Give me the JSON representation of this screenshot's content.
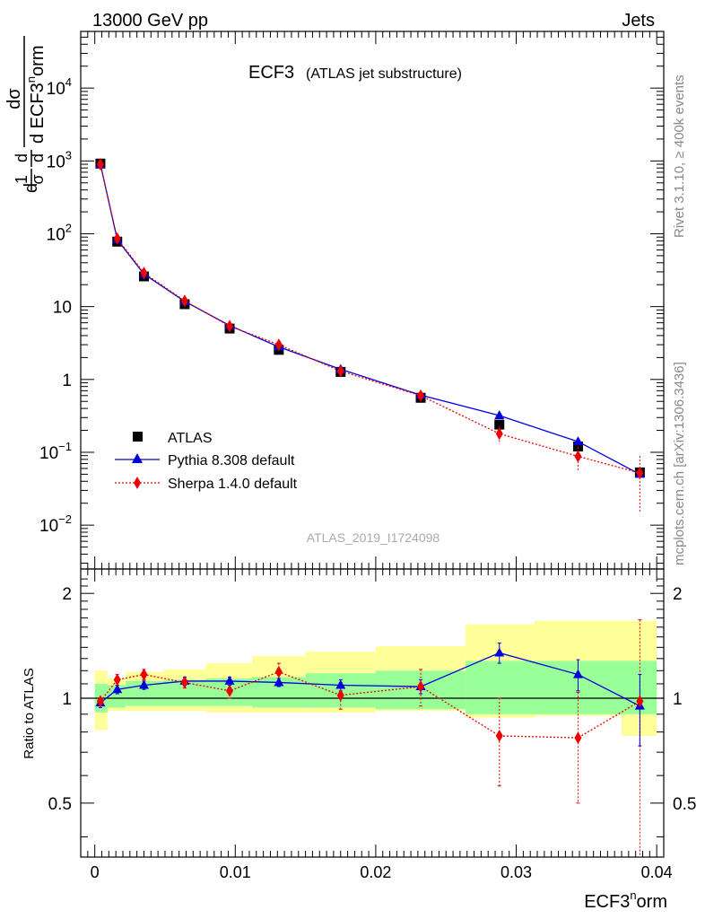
{
  "header": {
    "energy": "13000 GeV pp",
    "category": "Jets"
  },
  "side_labels": {
    "rivet": "Rivet 3.1.10, ≥ 400k events",
    "mcplots": "mcplots.cern.ch [arXiv:1306.3436]"
  },
  "chart_data": {
    "type": "line",
    "title_main": "ECF3",
    "title_sub": "(ATLAS jet substructure)",
    "watermark": "ATLAS_2019_I1724098",
    "xlabel_base": "ECF3",
    "xlabel_sup": "n",
    "xlabel_tail": "orm",
    "ylabel_top": {
      "prefix": "d",
      "frac1_num": "1",
      "frac1_den": "σ",
      "frac2_num": "d",
      "frac2_den": "d",
      "dsig_num": "dσ",
      "dsig_den_base": "d ECF3",
      "dsig_den_sup": "n",
      "dsig_den_tail": "orm"
    },
    "ylabel_ratio": "Ratio to ATLAS",
    "xlim": [
      -0.001,
      0.0405
    ],
    "ylim_top": [
      0.0025,
      60000
    ],
    "ylim_ratio": [
      0.35,
      2.35
    ],
    "x_ticks": [
      "0",
      "0.01",
      "0.02",
      "0.03",
      "0.04"
    ],
    "y_ticks_top": [
      {
        "base": "10",
        "exp": "4"
      },
      {
        "base": "10",
        "exp": "3"
      },
      {
        "base": "10",
        "exp": "2"
      },
      {
        "base": "10",
        "exp": ""
      },
      {
        "base": "1",
        "exp": ""
      },
      {
        "base": "10",
        "exp": "−1"
      },
      {
        "base": "10",
        "exp": "−2"
      }
    ],
    "y_ticks_ratio": [
      "2",
      "1",
      "0.5"
    ],
    "legend": [
      "ATLAS",
      "Pythia 8.308 default",
      "Sherpa 1.4.0 default"
    ],
    "bin_edges": [
      0.0,
      0.0009,
      0.0022,
      0.0049,
      0.0079,
      0.0112,
      0.015,
      0.02,
      0.0264,
      0.0313,
      0.0375,
      0.04
    ],
    "x": [
      0.0004,
      0.0016,
      0.0035,
      0.0064,
      0.0096,
      0.0131,
      0.0175,
      0.0232,
      0.0288,
      0.0344,
      0.0388
    ],
    "series": [
      {
        "name": "ATLAS",
        "values": [
          920,
          78,
          26,
          10.8,
          5.0,
          2.55,
          1.27,
          0.56,
          0.24,
          0.12,
          0.053
        ]
      },
      {
        "name": "Pythia 8.308 default",
        "values": [
          900,
          83,
          28,
          11.8,
          5.5,
          2.8,
          1.38,
          0.61,
          0.32,
          0.14,
          0.05
        ],
        "ratio": [
          0.97,
          1.06,
          1.09,
          1.12,
          1.12,
          1.11,
          1.09,
          1.08,
          1.35,
          1.17,
          0.95
        ],
        "ratio_err": [
          0.03,
          0.03,
          0.03,
          0.03,
          0.03,
          0.03,
          0.04,
          0.05,
          0.09,
          0.12,
          0.22
        ]
      },
      {
        "name": "Sherpa 1.4.0 default",
        "values": [
          900,
          86,
          29,
          12.0,
          5.4,
          3.0,
          1.3,
          0.6,
          0.18,
          0.088,
          0.052
        ],
        "ratio": [
          0.98,
          1.13,
          1.17,
          1.11,
          1.05,
          1.19,
          1.02,
          1.08,
          0.78,
          0.77,
          0.98
        ],
        "ratio_err": [
          0.02,
          0.04,
          0.04,
          0.04,
          0.05,
          0.07,
          0.09,
          0.13,
          0.22,
          0.27,
          0.7
        ]
      }
    ],
    "band_inner": [
      [
        0.91,
        1.1
      ],
      [
        0.94,
        1.09
      ],
      [
        0.95,
        1.12
      ],
      [
        0.95,
        1.13
      ],
      [
        0.95,
        1.14
      ],
      [
        0.94,
        1.15
      ],
      [
        0.94,
        1.18
      ],
      [
        0.93,
        1.2
      ],
      [
        0.9,
        1.28
      ],
      [
        0.9,
        1.28
      ],
      [
        0.9,
        1.28
      ]
    ],
    "band_outer": [
      [
        0.81,
        1.2
      ],
      [
        0.92,
        1.14
      ],
      [
        0.92,
        1.19
      ],
      [
        0.92,
        1.21
      ],
      [
        0.91,
        1.26
      ],
      [
        0.91,
        1.32
      ],
      [
        0.91,
        1.36
      ],
      [
        0.92,
        1.41
      ],
      [
        0.88,
        1.63
      ],
      [
        0.89,
        1.67
      ],
      [
        0.78,
        1.67
      ]
    ]
  }
}
